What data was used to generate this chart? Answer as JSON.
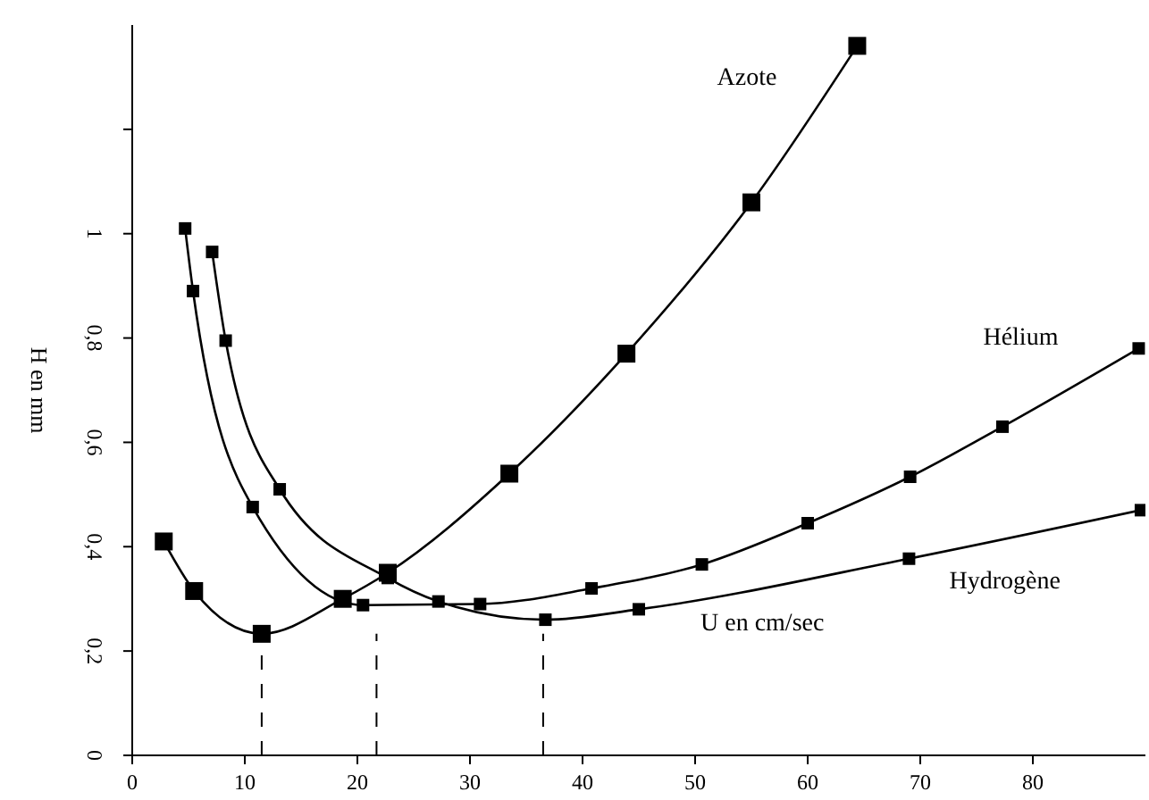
{
  "chart_data": {
    "type": "line",
    "xlabel": "U en cm/sec",
    "ylabel": "H en mm",
    "xlim": [
      0,
      90
    ],
    "xticks": [
      0,
      10,
      20,
      30,
      40,
      50,
      60,
      70,
      80
    ],
    "ylim": [
      0,
      1.4
    ],
    "yticks": [
      0,
      {
        "value": 0.2,
        "label": "0,2"
      },
      {
        "value": 0.4,
        "label": "0,4"
      },
      {
        "value": 0.6,
        "label": "0,6"
      },
      {
        "value": 0.8,
        "label": "0,8"
      },
      1,
      {
        "value": 1.2,
        "label": null
      }
    ],
    "grid": false,
    "legend": false,
    "marker": "square",
    "line_style": "solid",
    "ref_lines": [
      {
        "axis": "x",
        "value": 11.5,
        "line_style": "dashed"
      },
      {
        "axis": "x",
        "value": 21.7,
        "line_style": "dashed"
      },
      {
        "axis": "x",
        "value": 36.5,
        "line_style": "dashed"
      }
    ],
    "series": [
      {
        "name": "Azote",
        "color": "#000000",
        "x": [
          2.8,
          5.5,
          11.5,
          18.7,
          22.7,
          33.5,
          43.9,
          55,
          64.4
        ],
        "values": [
          0.41,
          0.315,
          0.233,
          0.3,
          0.35,
          0.54,
          0.77,
          1.06,
          1.36
        ]
      },
      {
        "name": "Hélium",
        "color": "#000000",
        "x": [
          4.7,
          5.4,
          10.7,
          20.5,
          30.9,
          40.8,
          50.6,
          60,
          69.1,
          77.3,
          89.4
        ],
        "values": [
          1.01,
          0.89,
          0.476,
          0.288,
          0.29,
          0.32,
          0.366,
          0.445,
          0.534,
          0.63,
          0.78
        ]
      },
      {
        "name": "Hydrogène",
        "color": "#000000",
        "x": [
          7.1,
          8.3,
          13.1,
          22.7,
          27.2,
          36.7,
          45,
          69,
          89.6
        ],
        "values": [
          0.965,
          0.795,
          0.51,
          0.34,
          0.295,
          0.26,
          0.28,
          0.377,
          0.47
        ]
      }
    ]
  }
}
